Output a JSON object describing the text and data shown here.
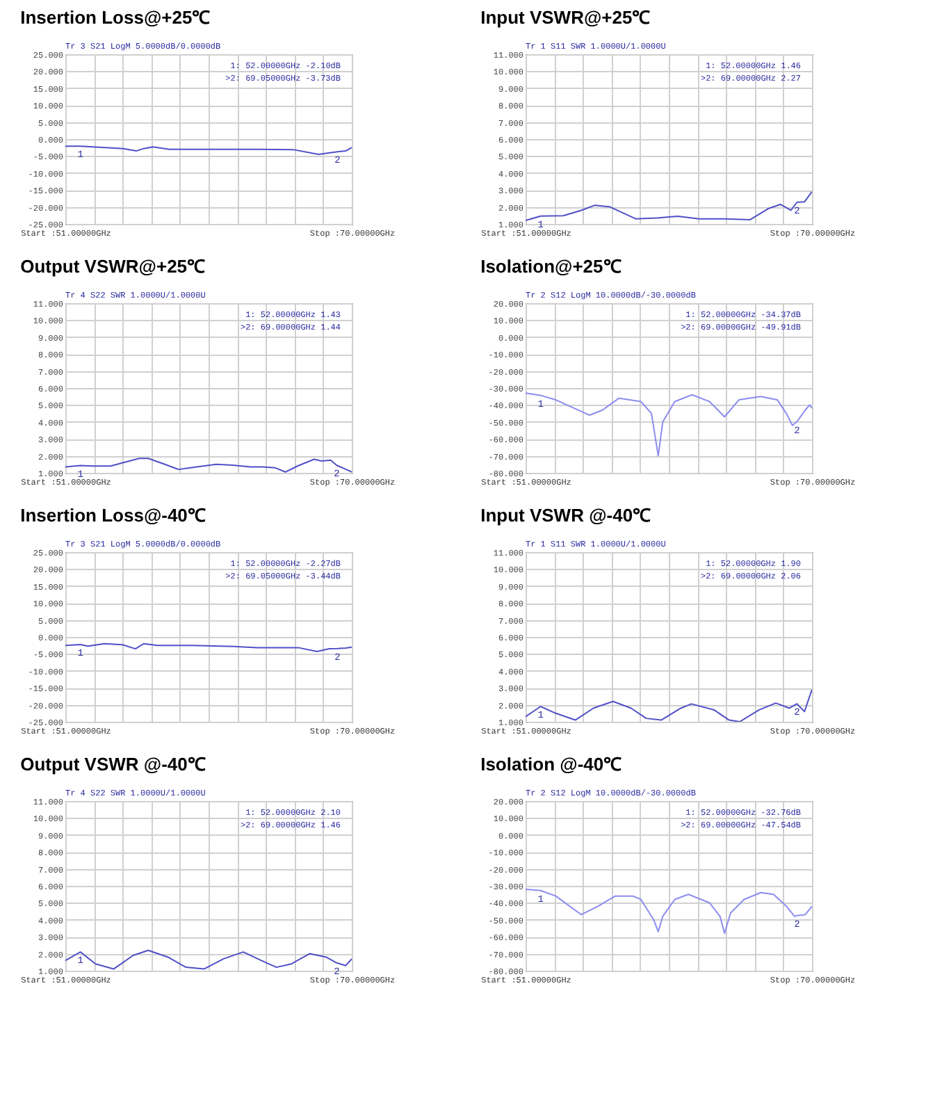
{
  "chart_data": [
    {
      "type": "line",
      "title": "Insertion Loss@+25℃",
      "xlim": [
        51,
        70
      ],
      "ylim": [
        -25,
        25
      ],
      "grid": true,
      "xticks": [
        {
          "value": 51,
          "label": "Start :51.00000GHz"
        },
        {
          "value": 52.9,
          "label": null
        },
        {
          "value": 54.8,
          "label": null
        },
        {
          "value": 56.7,
          "label": null
        },
        {
          "value": 58.6,
          "label": null
        },
        {
          "value": 60.5,
          "label": null
        },
        {
          "value": 62.4,
          "label": null
        },
        {
          "value": 64.3,
          "label": null
        },
        {
          "value": 66.2,
          "label": null
        },
        {
          "value": 68.1,
          "label": null
        },
        {
          "value": 70,
          "label": "Stop :70.00000GHz"
        }
      ],
      "yticks": [
        {
          "value": 25,
          "label": "25.000"
        },
        {
          "value": 20,
          "label": "20.000"
        },
        {
          "value": 15,
          "label": "15.000"
        },
        {
          "value": 10,
          "label": "10.000"
        },
        {
          "value": 5,
          "label": "5.000"
        },
        {
          "value": 0,
          "label": "0.000"
        },
        {
          "value": -5,
          "label": "-5.000"
        },
        {
          "value": -10,
          "label": "-10.000"
        },
        {
          "value": -15,
          "label": "-15.000"
        },
        {
          "value": -20,
          "label": "-20.000"
        },
        {
          "value": -25,
          "label": "-25.000"
        }
      ],
      "series": [
        {
          "color": "#5050c8",
          "x": [
            51,
            52,
            54.85,
            55.7,
            56.2,
            56.8,
            57.9,
            59.3,
            62.1,
            63.8,
            66.1,
            67.8,
            69.05,
            69.6,
            70
          ],
          "values": [
            -2.1,
            -2.1,
            -2.8,
            -3.5,
            -2.8,
            -2.3,
            -3,
            -3,
            -3,
            -3,
            -3.1,
            -4.5,
            -3.73,
            -3.5,
            -2.5
          ]
        }
      ],
      "annotations": [
        "Tr 3  S21 LogM 5.0000dB/0.0000dB",
        "1:   52.00000GHz -2.10dB",
        ">2:  69.05000GHz -3.73dB",
        {
          "text": "1",
          "x": 52,
          "y": -2.1
        },
        {
          "text": "2",
          "x": 69.05,
          "y": -3.73
        }
      ]
    },
    {
      "type": "line",
      "title": "Input VSWR@+25℃",
      "xlim": [
        51,
        70
      ],
      "ylim": [
        1,
        11
      ],
      "grid": true,
      "xticks": [
        {
          "value": 51,
          "label": "Start :51.00000GHz"
        },
        {
          "value": 52.9,
          "label": null
        },
        {
          "value": 54.8,
          "label": null
        },
        {
          "value": 56.7,
          "label": null
        },
        {
          "value": 58.6,
          "label": null
        },
        {
          "value": 60.5,
          "label": null
        },
        {
          "value": 62.4,
          "label": null
        },
        {
          "value": 64.3,
          "label": null
        },
        {
          "value": 66.2,
          "label": null
        },
        {
          "value": 68.1,
          "label": null
        },
        {
          "value": 70,
          "label": "Stop :70.00000GHz"
        }
      ],
      "yticks": [
        {
          "value": 11,
          "label": "11.000"
        },
        {
          "value": 10,
          "label": "10.000"
        },
        {
          "value": 9,
          "label": "9.000"
        },
        {
          "value": 8,
          "label": "8.000"
        },
        {
          "value": 7,
          "label": "7.000"
        },
        {
          "value": 6,
          "label": "6.000"
        },
        {
          "value": 5,
          "label": "5.000"
        },
        {
          "value": 4,
          "label": "4.000"
        },
        {
          "value": 3,
          "label": "3.000"
        },
        {
          "value": 2,
          "label": "2.000"
        },
        {
          "value": 1,
          "label": "1.000"
        }
      ],
      "series": [
        {
          "color": "#5050c8",
          "x": [
            51,
            52,
            53.5,
            54.7,
            55.6,
            56.6,
            58.3,
            59.7,
            61.1,
            62.5,
            64.2,
            65.9,
            67.1,
            67.9,
            68.6,
            69,
            69.5,
            70
          ],
          "values": [
            1.2,
            1.46,
            1.48,
            1.8,
            2.1,
            2,
            1.3,
            1.35,
            1.45,
            1.3,
            1.3,
            1.25,
            1.9,
            2.15,
            1.8,
            2.27,
            2.3,
            2.9
          ]
        }
      ],
      "annotations": [
        "Tr 1  S11 SWR 1.0000U/1.0000U",
        "1:   52.00000GHz 1.46",
        ">2:  69.00000GHz 2.27",
        {
          "text": "1",
          "x": 52,
          "y": 1.46
        },
        {
          "text": "2",
          "x": 69,
          "y": 2.27
        }
      ]
    },
    {
      "type": "line",
      "title": "Output VSWR@+25℃",
      "xlim": [
        51,
        70
      ],
      "ylim": [
        1,
        11
      ],
      "grid": true,
      "xticks": [
        {
          "value": 51,
          "label": "Start :51.00000GHz"
        },
        {
          "value": 52.9,
          "label": null
        },
        {
          "value": 54.8,
          "label": null
        },
        {
          "value": 56.7,
          "label": null
        },
        {
          "value": 58.6,
          "label": null
        },
        {
          "value": 60.5,
          "label": null
        },
        {
          "value": 62.4,
          "label": null
        },
        {
          "value": 64.3,
          "label": null
        },
        {
          "value": 66.2,
          "label": null
        },
        {
          "value": 68.1,
          "label": null
        },
        {
          "value": 70,
          "label": "Stop :70.00000GHz"
        }
      ],
      "yticks": [
        {
          "value": 11,
          "label": "11.000"
        },
        {
          "value": 10,
          "label": "10.000"
        },
        {
          "value": 9,
          "label": "9.000"
        },
        {
          "value": 8,
          "label": "8.000"
        },
        {
          "value": 7,
          "label": "7.000"
        },
        {
          "value": 6,
          "label": "6.000"
        },
        {
          "value": 5,
          "label": "5.000"
        },
        {
          "value": 4,
          "label": "4.000"
        },
        {
          "value": 3,
          "label": "3.000"
        },
        {
          "value": 2,
          "label": "2.000"
        },
        {
          "value": 1,
          "label": "1.000"
        }
      ],
      "series": [
        {
          "color": "#5050c8",
          "x": [
            51,
            52,
            52.8,
            54,
            55.9,
            56.5,
            57.6,
            58.5,
            59.3,
            61,
            62.1,
            63.3,
            64.1,
            64.9,
            65.6,
            66.4,
            67.5,
            68,
            68.6,
            69,
            69.5,
            70
          ],
          "values": [
            1.35,
            1.43,
            1.4,
            1.4,
            1.85,
            1.85,
            1.5,
            1.2,
            1.3,
            1.5,
            1.45,
            1.35,
            1.35,
            1.3,
            1.05,
            1.4,
            1.8,
            1.7,
            1.75,
            1.44,
            1.25,
            1.05
          ]
        }
      ],
      "annotations": [
        "Tr 4  S22 SWR 1.0000U/1.0000U",
        "1:   52.00000GHz 1.43",
        ">2:  69.00000GHz 1.44",
        {
          "text": "1",
          "x": 52,
          "y": 1.43
        },
        {
          "text": "2",
          "x": 69,
          "y": 1.44
        }
      ]
    },
    {
      "type": "line",
      "title": "Isolation@+25℃",
      "xlim": [
        51,
        70
      ],
      "ylim": [
        -80,
        20
      ],
      "grid": true,
      "xticks": [
        {
          "value": 51,
          "label": "Start :51.00000GHz"
        },
        {
          "value": 52.9,
          "label": null
        },
        {
          "value": 54.8,
          "label": null
        },
        {
          "value": 56.7,
          "label": null
        },
        {
          "value": 58.6,
          "label": null
        },
        {
          "value": 60.5,
          "label": null
        },
        {
          "value": 62.4,
          "label": null
        },
        {
          "value": 64.3,
          "label": null
        },
        {
          "value": 66.2,
          "label": null
        },
        {
          "value": 68.1,
          "label": null
        },
        {
          "value": 70,
          "label": "Stop :70.00000GHz"
        }
      ],
      "yticks": [
        {
          "value": 20,
          "label": "20.000"
        },
        {
          "value": 10,
          "label": "10.000"
        },
        {
          "value": 0,
          "label": "0.000"
        },
        {
          "value": -10,
          "label": "-10.000"
        },
        {
          "value": -20,
          "label": "-20.000"
        },
        {
          "value": -30,
          "label": "-30.000"
        },
        {
          "value": -40,
          "label": "-40.000"
        },
        {
          "value": -50,
          "label": "-50.000"
        },
        {
          "value": -60,
          "label": "-60.000"
        },
        {
          "value": -70,
          "label": "-70.000"
        },
        {
          "value": -80,
          "label": "-80.000"
        }
      ],
      "series": [
        {
          "color": "#8c8cf0",
          "x": [
            51,
            52,
            53,
            55.25,
            56.1,
            57.2,
            58.65,
            59.35,
            59.8,
            60.1,
            60.9,
            62.05,
            63.2,
            64.2,
            65.15,
            66.6,
            67.7,
            68.3,
            68.7,
            69,
            69.55,
            69.85,
            70
          ],
          "values": [
            -33,
            -34.37,
            -37,
            -46,
            -43,
            -36,
            -38,
            -45,
            -70,
            -50,
            -38,
            -34,
            -38,
            -47,
            -37,
            -35,
            -37,
            -45,
            -52,
            -49.91,
            -43,
            -40,
            -42
          ]
        }
      ],
      "annotations": [
        "Tr 2  S12 LogM 10.0000dB/-30.0000dB",
        "1:   52.00000GHz -34.37dB",
        ">2:  69.00000GHz -49.91dB",
        {
          "text": "1",
          "x": 52,
          "y": -34.37
        },
        {
          "text": "2",
          "x": 69,
          "y": -49.91
        }
      ]
    },
    {
      "type": "line",
      "title": "Insertion Loss@-40℃",
      "xlim": [
        51,
        70
      ],
      "ylim": [
        -25,
        25
      ],
      "grid": true,
      "xticks": [
        {
          "value": 51,
          "label": "Start :51.00000GHz"
        },
        {
          "value": 52.9,
          "label": null
        },
        {
          "value": 54.8,
          "label": null
        },
        {
          "value": 56.7,
          "label": null
        },
        {
          "value": 58.6,
          "label": null
        },
        {
          "value": 60.5,
          "label": null
        },
        {
          "value": 62.4,
          "label": null
        },
        {
          "value": 64.3,
          "label": null
        },
        {
          "value": 66.2,
          "label": null
        },
        {
          "value": 68.1,
          "label": null
        },
        {
          "value": 70,
          "label": "Stop :70.00000GHz"
        }
      ],
      "yticks": [
        {
          "value": 25,
          "label": "25.000"
        },
        {
          "value": 20,
          "label": "20.000"
        },
        {
          "value": 15,
          "label": "15.000"
        },
        {
          "value": 10,
          "label": "10.000"
        },
        {
          "value": 5,
          "label": "5.000"
        },
        {
          "value": 0,
          "label": "0.000"
        },
        {
          "value": -5,
          "label": "-5.000"
        },
        {
          "value": -10,
          "label": "-10.000"
        },
        {
          "value": -15,
          "label": "-15.000"
        },
        {
          "value": -20,
          "label": "-20.000"
        },
        {
          "value": -25,
          "label": "-25.000"
        }
      ],
      "series": [
        {
          "color": "#5050c8",
          "x": [
            51,
            52,
            52.5,
            53.6,
            54.8,
            55.65,
            56.2,
            57.1,
            59.4,
            62.2,
            63.7,
            65.1,
            66.5,
            67.7,
            68.5,
            69.05,
            69.6,
            70
          ],
          "values": [
            -2.5,
            -2.27,
            -2.7,
            -2,
            -2.3,
            -3.5,
            -2,
            -2.5,
            -2.5,
            -2.8,
            -3.2,
            -3.2,
            -3.2,
            -4.3,
            -3.5,
            -3.44,
            -3.3,
            -3
          ]
        }
      ],
      "annotations": [
        "Tr 3  S21 LogM 5.0000dB/0.0000dB",
        "1:   52.00000GHz -2.27dB",
        ">2:  69.05000GHz -3.44dB",
        {
          "text": "1",
          "x": 52,
          "y": -2.27
        },
        {
          "text": "2",
          "x": 69.05,
          "y": -3.44
        }
      ]
    },
    {
      "type": "line",
      "title": "Input VSWR @-40℃",
      "xlim": [
        51,
        70
      ],
      "ylim": [
        1,
        11
      ],
      "grid": true,
      "xticks": [
        {
          "value": 51,
          "label": "Start :51.00000GHz"
        },
        {
          "value": 52.9,
          "label": null
        },
        {
          "value": 54.8,
          "label": null
        },
        {
          "value": 56.7,
          "label": null
        },
        {
          "value": 58.6,
          "label": null
        },
        {
          "value": 60.5,
          "label": null
        },
        {
          "value": 62.4,
          "label": null
        },
        {
          "value": 64.3,
          "label": null
        },
        {
          "value": 66.2,
          "label": null
        },
        {
          "value": 68.1,
          "label": null
        },
        {
          "value": 70,
          "label": "Stop :70.00000GHz"
        }
      ],
      "yticks": [
        {
          "value": 11,
          "label": "11.000"
        },
        {
          "value": 10,
          "label": "10.000"
        },
        {
          "value": 9,
          "label": "9.000"
        },
        {
          "value": 8,
          "label": "8.000"
        },
        {
          "value": 7,
          "label": "7.000"
        },
        {
          "value": 6,
          "label": "6.000"
        },
        {
          "value": 5,
          "label": "5.000"
        },
        {
          "value": 4,
          "label": "4.000"
        },
        {
          "value": 3,
          "label": "3.000"
        },
        {
          "value": 2,
          "label": "2.000"
        },
        {
          "value": 1,
          "label": "1.000"
        }
      ],
      "series": [
        {
          "color": "#5050c8",
          "x": [
            51,
            52,
            53,
            54.3,
            55.5,
            56.8,
            58,
            59,
            60,
            61.3,
            62,
            63.5,
            64.5,
            65.2,
            66.5,
            67.6,
            68.5,
            69,
            69.5,
            70
          ],
          "values": [
            1.3,
            1.9,
            1.5,
            1.1,
            1.8,
            2.2,
            1.8,
            1.2,
            1.1,
            1.8,
            2.05,
            1.7,
            1.1,
            1,
            1.7,
            2.1,
            1.8,
            2.06,
            1.6,
            2.9
          ]
        }
      ],
      "annotations": [
        "Tr 1  S11 SWR 1.0000U/1.0000U",
        "1:   52.00000GHz 1.90",
        ">2:  69.00000GHz 2.06",
        {
          "text": "1",
          "x": 52,
          "y": 1.9
        },
        {
          "text": "2",
          "x": 69,
          "y": 2.06
        }
      ]
    },
    {
      "type": "line",
      "title": "Output VSWR @-40℃",
      "xlim": [
        51,
        70
      ],
      "ylim": [
        1,
        11
      ],
      "grid": true,
      "xticks": [
        {
          "value": 51,
          "label": "Start :51.00000GHz"
        },
        {
          "value": 52.9,
          "label": null
        },
        {
          "value": 54.8,
          "label": null
        },
        {
          "value": 56.7,
          "label": null
        },
        {
          "value": 58.6,
          "label": null
        },
        {
          "value": 60.5,
          "label": null
        },
        {
          "value": 62.4,
          "label": null
        },
        {
          "value": 64.3,
          "label": null
        },
        {
          "value": 66.2,
          "label": null
        },
        {
          "value": 68.1,
          "label": null
        },
        {
          "value": 70,
          "label": "Stop :70.00000GHz"
        }
      ],
      "yticks": [
        {
          "value": 11,
          "label": "11.000"
        },
        {
          "value": 10,
          "label": "10.000"
        },
        {
          "value": 9,
          "label": "9.000"
        },
        {
          "value": 8,
          "label": "8.000"
        },
        {
          "value": 7,
          "label": "7.000"
        },
        {
          "value": 6,
          "label": "6.000"
        },
        {
          "value": 5,
          "label": "5.000"
        },
        {
          "value": 4,
          "label": "4.000"
        },
        {
          "value": 3,
          "label": "3.000"
        },
        {
          "value": 2,
          "label": "2.000"
        },
        {
          "value": 1,
          "label": "1.000"
        }
      ],
      "series": [
        {
          "color": "#5050c8",
          "x": [
            51,
            52,
            53,
            54.2,
            55.5,
            56.5,
            57.8,
            59,
            60.2,
            61.5,
            62.8,
            64,
            65,
            66,
            67.2,
            68.3,
            69,
            69.6,
            70
          ],
          "values": [
            1.6,
            2.1,
            1.4,
            1.1,
            1.9,
            2.2,
            1.8,
            1.2,
            1.1,
            1.7,
            2.1,
            1.6,
            1.2,
            1.4,
            2,
            1.8,
            1.46,
            1.3,
            1.7
          ]
        }
      ],
      "annotations": [
        "Tr 4  S22 SWR 1.0000U/1.0000U",
        "1:   52.00000GHz 2.10",
        ">2:  69.00000GHz 1.46",
        {
          "text": "1",
          "x": 52,
          "y": 2.1
        },
        {
          "text": "2",
          "x": 69,
          "y": 1.46
        }
      ]
    },
    {
      "type": "line",
      "title": "Isolation @-40℃",
      "xlim": [
        51,
        70
      ],
      "ylim": [
        -80,
        20
      ],
      "grid": true,
      "xticks": [
        {
          "value": 51,
          "label": "Start :51.00000GHz"
        },
        {
          "value": 52.9,
          "label": null
        },
        {
          "value": 54.8,
          "label": null
        },
        {
          "value": 56.7,
          "label": null
        },
        {
          "value": 58.6,
          "label": null
        },
        {
          "value": 60.5,
          "label": null
        },
        {
          "value": 62.4,
          "label": null
        },
        {
          "value": 64.3,
          "label": null
        },
        {
          "value": 66.2,
          "label": null
        },
        {
          "value": 68.1,
          "label": null
        },
        {
          "value": 70,
          "label": "Stop :70.00000GHz"
        }
      ],
      "yticks": [
        {
          "value": 20,
          "label": "20.000"
        },
        {
          "value": 10,
          "label": "10.000"
        },
        {
          "value": 0,
          "label": "0.000"
        },
        {
          "value": -10,
          "label": "-10.000"
        },
        {
          "value": -20,
          "label": "-20.000"
        },
        {
          "value": -30,
          "label": "-30.000"
        },
        {
          "value": -40,
          "label": "-40.000"
        },
        {
          "value": -50,
          "label": "-50.000"
        },
        {
          "value": -60,
          "label": "-60.000"
        },
        {
          "value": -70,
          "label": "-70.000"
        },
        {
          "value": -80,
          "label": "-80.000"
        }
      ],
      "series": [
        {
          "color": "#8c8cf0",
          "x": [
            51,
            52,
            53,
            54.7,
            55.8,
            56.95,
            58.1,
            58.65,
            59.5,
            59.8,
            60.1,
            60.9,
            61.8,
            63.2,
            63.9,
            64.2,
            64.6,
            65.5,
            66.6,
            67.45,
            68.3,
            68.85,
            69,
            69.55,
            70
          ],
          "values": [
            -32,
            -32.76,
            -36,
            -47,
            -42,
            -36,
            -36,
            -38,
            -50,
            -57,
            -48,
            -38,
            -35,
            -40,
            -48,
            -58,
            -46,
            -38,
            -34,
            -35,
            -42,
            -48,
            -47.54,
            -47,
            -42
          ]
        }
      ],
      "annotations": [
        "Tr 2  S12 LogM 10.0000dB/-30.0000dB",
        "1:   52.00000GHz -32.76dB",
        ">2:  69.00000GHz -47.54dB",
        {
          "text": "1",
          "x": 52,
          "y": -32.76
        },
        {
          "text": "2",
          "x": 69,
          "y": -47.54
        }
      ]
    }
  ]
}
